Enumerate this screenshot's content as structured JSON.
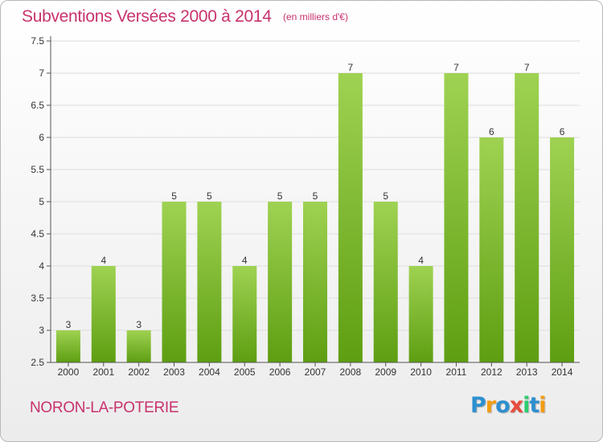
{
  "title": "Subventions Versées 2000 à 2014",
  "subtitle": "(en milliers d'€)",
  "commune": "NORON-LA-POTERIE",
  "logo": {
    "letters": [
      "P",
      "r",
      "o",
      "x",
      "i",
      "t",
      "i"
    ],
    "colors": [
      "#2d8fd0",
      "#f39c12",
      "#2d8fd0",
      "#e74c3c",
      "#2ecc71",
      "#2d8fd0",
      "#f39c12"
    ]
  },
  "colors": {
    "bar_top": "#9fd252",
    "bar_bottom": "#5e9e12",
    "title": "#c8326e",
    "grid": "#dddddd"
  },
  "chart_data": {
    "type": "bar",
    "categories": [
      "2000",
      "2001",
      "2002",
      "2003",
      "2004",
      "2005",
      "2006",
      "2007",
      "2008",
      "2009",
      "2010",
      "2011",
      "2012",
      "2013",
      "2014"
    ],
    "values": [
      3,
      4,
      3,
      5,
      5,
      4,
      5,
      5,
      7,
      5,
      4,
      7,
      6,
      7,
      6
    ],
    "title": "Subventions Versées 2000 à 2014",
    "subtitle": "(en milliers d'€)",
    "xlabel": "",
    "ylabel": "",
    "ylim": [
      2.5,
      7.5
    ],
    "yticks": [
      "2.5",
      "3",
      "3.5",
      "4",
      "4.5",
      "5",
      "5.5",
      "6",
      "6.5",
      "7",
      "7.5"
    ],
    "grid": true
  }
}
